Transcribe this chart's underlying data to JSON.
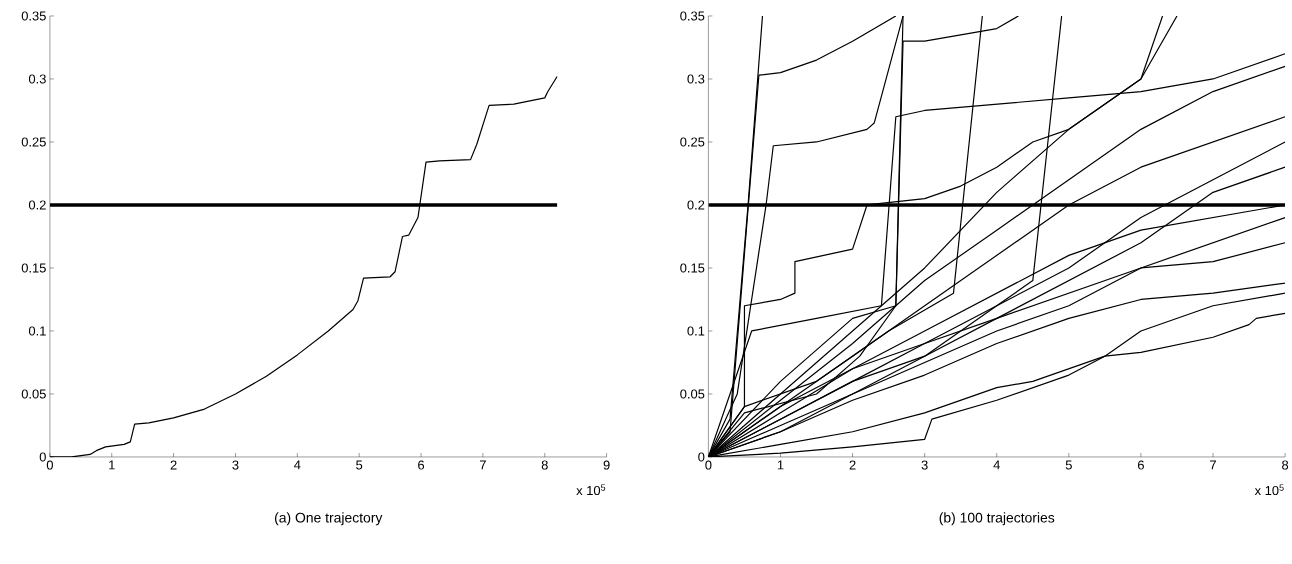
{
  "chart_data": [
    {
      "type": "line",
      "title": "(a) One trajectory",
      "xlim": [
        0,
        9
      ],
      "ylim": [
        0,
        0.35
      ],
      "xticks": [
        0,
        1,
        2,
        3,
        4,
        5,
        6,
        7,
        8,
        9
      ],
      "yticks": [
        0,
        0.05,
        0.1,
        0.15,
        0.2,
        0.25,
        0.3,
        0.35
      ],
      "annotations": [
        "x 10$^{5}$"
      ],
      "ref_lines": [
        {
          "axis": "y",
          "value": 0.2
        }
      ],
      "series": [
        {
          "color": "#000000",
          "x": [
            0,
            0.35,
            0.65,
            0.75,
            0.9,
            1.2,
            1.3,
            1.37,
            1.6,
            2,
            2.5,
            3,
            3.5,
            4,
            4.5,
            4.9,
            4.98,
            5.07,
            5.5,
            5.58,
            5.7,
            5.8,
            5.95,
            6.08,
            6.3,
            6.8,
            6.9,
            7.1,
            7.5,
            8,
            8.05,
            8.2
          ],
          "values": [
            0,
            0,
            0.002,
            0.005,
            0.008,
            0.01,
            0.012,
            0.026,
            0.027,
            0.031,
            0.038,
            0.05,
            0.064,
            0.081,
            0.1,
            0.117,
            0.124,
            0.142,
            0.143,
            0.147,
            0.175,
            0.176,
            0.19,
            0.234,
            0.235,
            0.236,
            0.248,
            0.279,
            0.28,
            0.285,
            0.29,
            0.302
          ]
        }
      ]
    },
    {
      "type": "line",
      "title": "(b) 100 trajectories",
      "xlim": [
        0,
        8
      ],
      "ylim": [
        0,
        0.35
      ],
      "xticks": [
        0,
        1,
        2,
        3,
        4,
        5,
        6,
        7,
        8
      ],
      "yticks": [
        0,
        0.05,
        0.1,
        0.15,
        0.2,
        0.25,
        0.3,
        0.35
      ],
      "annotations": [
        "x 10$^{5}$"
      ],
      "ref_lines": [
        {
          "axis": "y",
          "value": 0.2
        }
      ],
      "series": [
        {
          "color": "#000000",
          "x": [
            0,
            0.3,
            0.7,
            1,
            1.5,
            2,
            2.6
          ],
          "values": [
            0,
            0.02,
            0.303,
            0.305,
            0.315,
            0.33,
            0.35
          ]
        },
        {
          "color": "#000000",
          "x": [
            0,
            0.3,
            0.55,
            0.75
          ],
          "values": [
            0,
            0.03,
            0.2,
            0.35
          ]
        },
        {
          "color": "#000000",
          "x": [
            0,
            0.4,
            0.8,
            0.9,
            1.5,
            2.2,
            2.3,
            2.7
          ],
          "values": [
            0,
            0.05,
            0.2,
            0.247,
            0.25,
            0.26,
            0.265,
            0.35
          ]
        },
        {
          "color": "#000000",
          "x": [
            0,
            0.5,
            0.5,
            1,
            1.2,
            1.2,
            1.6,
            2,
            2.2,
            3,
            3.5,
            4,
            4.5,
            5,
            5.5,
            6,
            6.3
          ],
          "values": [
            0,
            0.04,
            0.12,
            0.125,
            0.13,
            0.155,
            0.16,
            0.165,
            0.2,
            0.205,
            0.215,
            0.23,
            0.25,
            0.26,
            0.28,
            0.3,
            0.35
          ]
        },
        {
          "color": "#000000",
          "x": [
            0,
            1,
            2,
            3,
            3.1,
            4,
            5,
            5.5,
            6,
            7,
            7.5,
            7.6,
            8
          ],
          "values": [
            0,
            0.003,
            0.008,
            0.014,
            0.03,
            0.045,
            0.065,
            0.08,
            0.083,
            0.095,
            0.105,
            0.11,
            0.114
          ]
        },
        {
          "color": "#000000",
          "x": [
            0,
            1,
            2,
            3,
            4,
            4.5,
            5,
            5.5,
            6,
            7,
            8
          ],
          "values": [
            0,
            0.01,
            0.02,
            0.035,
            0.055,
            0.06,
            0.07,
            0.08,
            0.1,
            0.12,
            0.13
          ]
        },
        {
          "color": "#000000",
          "x": [
            0,
            1,
            2,
            3,
            4,
            5,
            6,
            7,
            8
          ],
          "values": [
            0,
            0.02,
            0.045,
            0.065,
            0.09,
            0.11,
            0.125,
            0.13,
            0.138
          ]
        },
        {
          "color": "#000000",
          "x": [
            0,
            1,
            2,
            3,
            4,
            5,
            6,
            7,
            8
          ],
          "values": [
            0,
            0.03,
            0.06,
            0.08,
            0.11,
            0.13,
            0.15,
            0.155,
            0.17
          ]
        },
        {
          "color": "#000000",
          "x": [
            0,
            1,
            2,
            3,
            4,
            5,
            6,
            7,
            8
          ],
          "values": [
            0,
            0.035,
            0.07,
            0.1,
            0.13,
            0.16,
            0.18,
            0.19,
            0.2
          ]
        },
        {
          "color": "#000000",
          "x": [
            0,
            1,
            2,
            3,
            4,
            5,
            6,
            7,
            8
          ],
          "values": [
            0,
            0.04,
            0.08,
            0.12,
            0.16,
            0.2,
            0.23,
            0.25,
            0.27
          ]
        },
        {
          "color": "#000000",
          "x": [
            0,
            1,
            2,
            3,
            4,
            5,
            6,
            7,
            8
          ],
          "values": [
            0,
            0.045,
            0.09,
            0.14,
            0.18,
            0.22,
            0.26,
            0.29,
            0.31
          ]
        },
        {
          "color": "#000000",
          "x": [
            0,
            1,
            2,
            3,
            4,
            5,
            6,
            6.5
          ],
          "values": [
            0,
            0.05,
            0.1,
            0.15,
            0.21,
            0.26,
            0.3,
            0.35
          ]
        },
        {
          "color": "#000000",
          "x": [
            0,
            0.5,
            1.5,
            2.1,
            2.6,
            2.7
          ],
          "values": [
            0,
            0.035,
            0.05,
            0.08,
            0.12,
            0.35
          ]
        },
        {
          "color": "#000000",
          "x": [
            0,
            0.5,
            1.5,
            2.5,
            3.4,
            3.8
          ],
          "values": [
            0,
            0.04,
            0.06,
            0.1,
            0.13,
            0.35
          ]
        },
        {
          "color": "#000000",
          "x": [
            0,
            1,
            2,
            3,
            4,
            4.5,
            4.9
          ],
          "values": [
            0,
            0.03,
            0.06,
            0.09,
            0.12,
            0.14,
            0.35
          ]
        },
        {
          "color": "#000000",
          "x": [
            0,
            0.6,
            1.5,
            2.4,
            2.6,
            3,
            4,
            5,
            6,
            7,
            8
          ],
          "values": [
            0,
            0.1,
            0.11,
            0.12,
            0.27,
            0.275,
            0.28,
            0.285,
            0.29,
            0.3,
            0.32
          ]
        },
        {
          "color": "#000000",
          "x": [
            0,
            1,
            2,
            3,
            4,
            5,
            6,
            7,
            8
          ],
          "values": [
            0,
            0.025,
            0.05,
            0.075,
            0.1,
            0.12,
            0.15,
            0.17,
            0.19
          ]
        },
        {
          "color": "#000000",
          "x": [
            0,
            1,
            2,
            3,
            4,
            5,
            6,
            7,
            8
          ],
          "values": [
            0,
            0.04,
            0.07,
            0.09,
            0.11,
            0.14,
            0.17,
            0.21,
            0.23
          ]
        },
        {
          "color": "#000000",
          "x": [
            0,
            1,
            2,
            2.6,
            2.7,
            3,
            4,
            4.3
          ],
          "values": [
            0,
            0.06,
            0.11,
            0.12,
            0.33,
            0.33,
            0.34,
            0.35
          ]
        },
        {
          "color": "#000000",
          "x": [
            0,
            1,
            2,
            3,
            4,
            5,
            6,
            7,
            8
          ],
          "values": [
            0,
            0.02,
            0.05,
            0.08,
            0.12,
            0.15,
            0.19,
            0.22,
            0.25
          ]
        }
      ]
    }
  ]
}
